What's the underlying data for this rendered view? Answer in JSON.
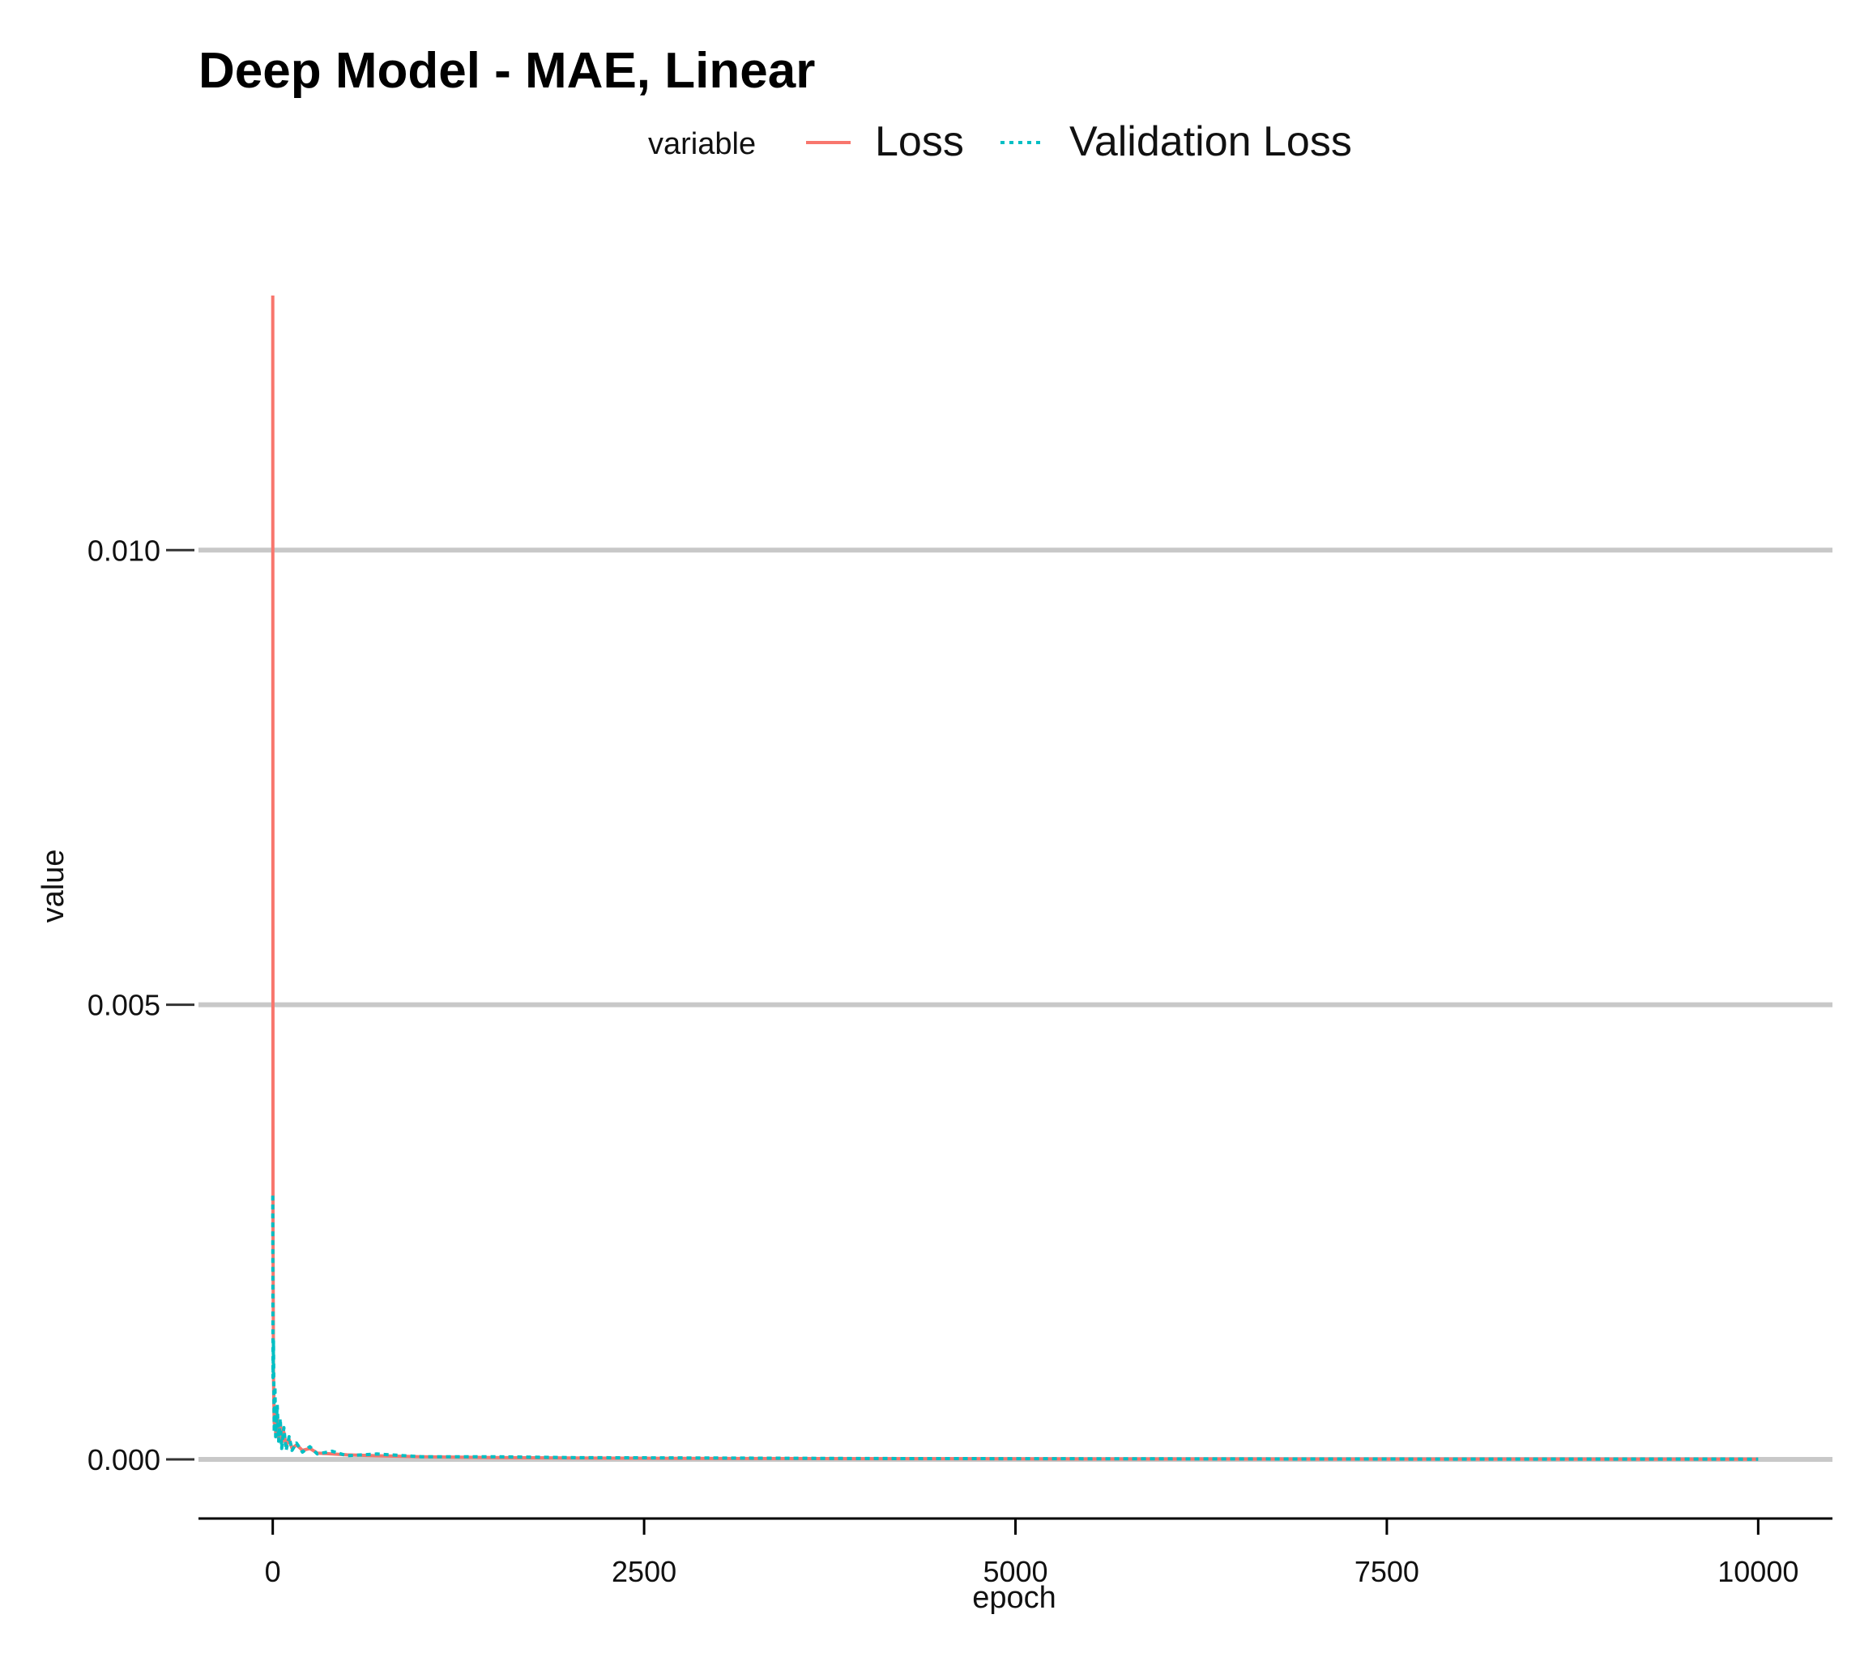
{
  "chart_data": {
    "type": "line",
    "title": "Deep Model - MAE, Linear",
    "xlabel": "epoch",
    "ylabel": "value",
    "xlim": [
      -500,
      10500
    ],
    "ylim": [
      -0.00065,
      0.0132
    ],
    "x_ticks": [
      0,
      2500,
      5000,
      7500,
      10000
    ],
    "x_tick_labels": [
      "0",
      "2500",
      "5000",
      "7500",
      "10000"
    ],
    "y_ticks": [
      0,
      0.005,
      0.01
    ],
    "y_tick_labels": [
      "0.000",
      "0.005",
      "0.010"
    ],
    "grid": "horizontal-major",
    "legend": {
      "title": "variable",
      "position": "top"
    },
    "series": [
      {
        "name": "Loss",
        "color": "#F8766D",
        "linestyle": "solid",
        "x": [
          0,
          2,
          5,
          10,
          15,
          20,
          30,
          40,
          50,
          60,
          75,
          90,
          110,
          130,
          160,
          200,
          250,
          300,
          400,
          500,
          700,
          1000,
          1500,
          2000,
          3000,
          4000,
          5000,
          6000,
          7000,
          8000,
          9000,
          10000
        ],
        "y": [
          0.0128,
          0.0025,
          0.0009,
          0.0004,
          0.00055,
          0.0003,
          0.00045,
          0.00022,
          0.0004,
          0.00018,
          0.0003,
          0.00015,
          0.00022,
          0.00012,
          0.00016,
          0.0001,
          0.00012,
          7e-05,
          6e-05,
          5e-05,
          4e-05,
          3e-05,
          2e-05,
          1.5e-05,
          1e-05,
          8e-06,
          6e-06,
          5e-06,
          4e-06,
          4e-06,
          3e-06,
          3e-06
        ]
      },
      {
        "name": "Validation Loss",
        "color": "#00BFC4",
        "linestyle": "dotted",
        "x": [
          0,
          2,
          5,
          10,
          15,
          20,
          30,
          40,
          50,
          60,
          75,
          90,
          110,
          130,
          160,
          200,
          250,
          300,
          400,
          500,
          700,
          1000,
          1500,
          2000,
          3000,
          4000,
          5000,
          6000,
          7000,
          8000,
          9000,
          10000
        ],
        "y": [
          0.0029,
          0.0009,
          0.0013,
          0.0003,
          0.0008,
          0.00025,
          0.0006,
          0.0002,
          0.00045,
          0.00012,
          0.00035,
          0.0001,
          0.00025,
          0.0001,
          0.00018,
          8e-05,
          0.00014,
          6e-05,
          9e-05,
          4e-05,
          6e-05,
          3e-05,
          3e-05,
          2e-05,
          1.5e-05,
          1e-05,
          8e-06,
          6e-06,
          5e-06,
          4e-06,
          4e-06,
          3e-06
        ]
      }
    ]
  }
}
